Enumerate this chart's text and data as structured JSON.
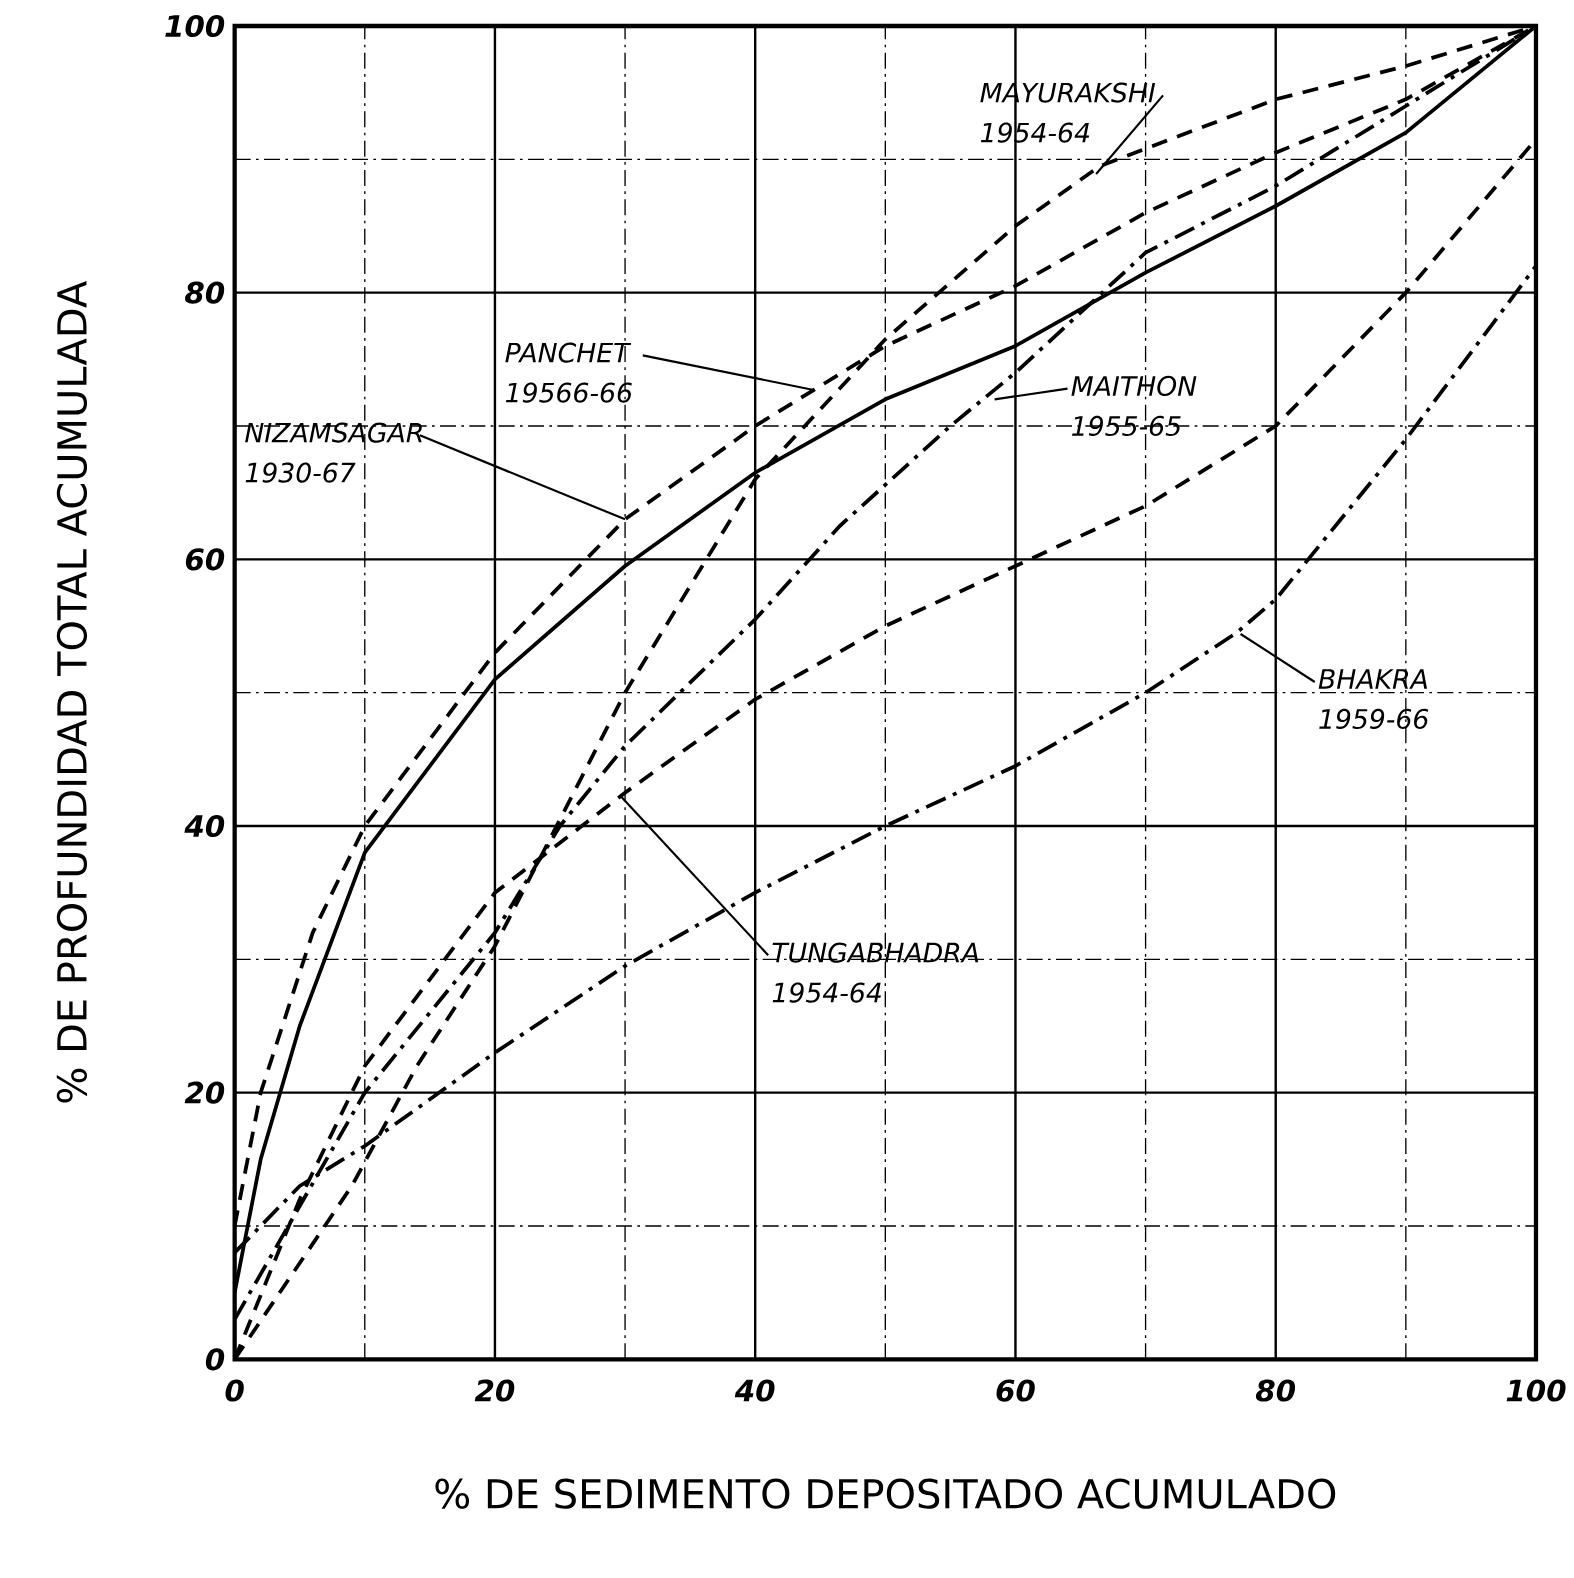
{
  "chart_data": {
    "type": "line",
    "xlabel": "% DE SEDIMENTO   DEPOSITADO ACUMULADO",
    "ylabel": "% DE PROFUNDIDAD TOTAL ACUMULADA",
    "xlim": [
      0,
      100
    ],
    "ylim": [
      0,
      100
    ],
    "xticks": [
      0,
      20,
      40,
      60,
      80,
      100
    ],
    "yticks": [
      0,
      20,
      40,
      60,
      80,
      100
    ],
    "grid": true,
    "legend": false,
    "marker": "none",
    "annotations": [
      {
        "text": "MAYURAKSHI 1954-64",
        "x": 66.2,
        "y": 88.9
      },
      {
        "text": "PANCHET 19566-66",
        "x": 44.5,
        "y": 72.7
      },
      {
        "text": "NIZAMSAGAR 1930-67",
        "x": 30,
        "y": 63
      },
      {
        "text": "MAITHON 1955-65",
        "x": 58.4,
        "y": 72
      },
      {
        "text": "TUNGABHADRA 1954-64",
        "x": 29.6,
        "y": 42.3
      },
      {
        "text": "BHAKRA 1959-66",
        "x": 77.3,
        "y": 54.4
      }
    ],
    "series": [
      {
        "color": "#000000",
        "line_style": "dashed",
        "x": [
          0,
          9,
          14,
          20,
          30,
          40,
          50,
          60,
          66.5,
          80,
          90,
          100
        ],
        "values": [
          0,
          13,
          22,
          31,
          50,
          66,
          76.5,
          85,
          89.5,
          94.5,
          97,
          100
        ]
      },
      {
        "color": "#000000",
        "line_style": "solid",
        "x": [
          0,
          2,
          5,
          10,
          20,
          30,
          40,
          50,
          60,
          70,
          80,
          90,
          100
        ],
        "values": [
          5,
          15,
          25,
          38,
          51,
          59.5,
          66.5,
          72,
          76,
          81.5,
          86.5,
          92,
          100
        ]
      },
      {
        "color": "#000000",
        "line_style": "dashed",
        "x": [
          0,
          2,
          4,
          6,
          10,
          20,
          30,
          40,
          50,
          60,
          70,
          80,
          90,
          100
        ],
        "values": [
          10,
          20,
          26,
          32,
          40,
          53,
          63,
          70,
          76,
          80.5,
          86,
          90.5,
          94.5,
          100
        ]
      },
      {
        "color": "#000000",
        "line_style": "dashdot",
        "x": [
          0,
          10,
          20,
          25,
          30,
          40,
          46.5,
          55,
          60,
          70,
          80,
          90,
          100
        ],
        "values": [
          3,
          20,
          32,
          40,
          46,
          55.5,
          62.5,
          70,
          74,
          83,
          88,
          94,
          100
        ]
      },
      {
        "color": "#000000",
        "line_style": "dashed",
        "x": [
          0,
          5,
          10,
          20,
          30,
          40,
          50,
          60,
          70,
          80,
          90,
          100
        ],
        "values": [
          0,
          12,
          22,
          35,
          42.5,
          49.5,
          55,
          59.5,
          64,
          70,
          80,
          91.5
        ]
      },
      {
        "color": "#000000",
        "line_style": "dashdot",
        "x": [
          0,
          5,
          10,
          20,
          30,
          40,
          50,
          60,
          70,
          77,
          80,
          90,
          100
        ],
        "values": [
          8,
          13,
          16,
          23,
          29.5,
          35,
          40,
          44.5,
          50,
          54.5,
          57,
          69,
          82
        ]
      }
    ]
  }
}
